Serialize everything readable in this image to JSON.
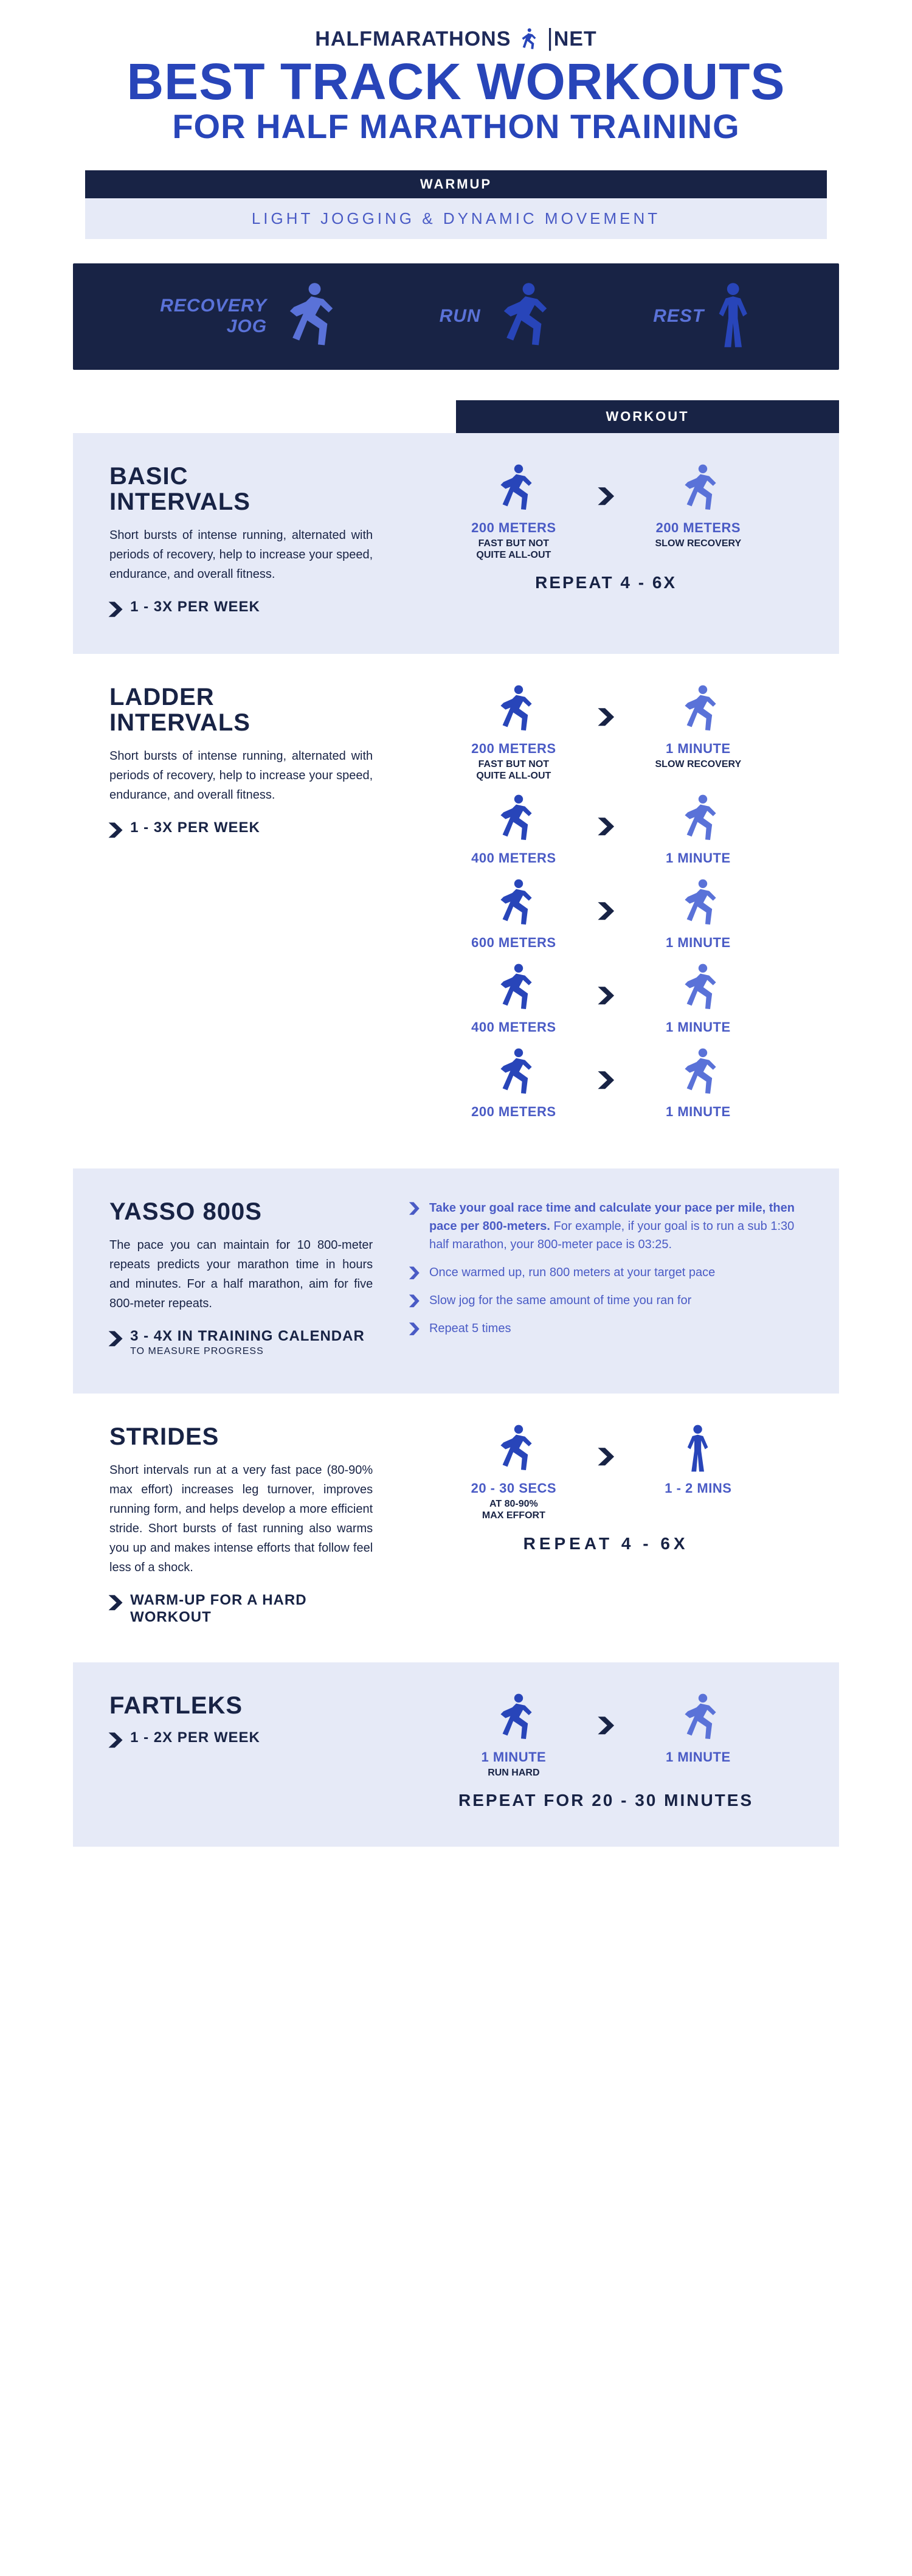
{
  "header": {
    "logo_left": "HALF",
    "logo_right": "MARATHONS",
    "logo_net": "NET",
    "title": "BEST TRACK WORKOUTS",
    "subtitle": "FOR HALF MARATHON TRAINING"
  },
  "warmup": {
    "label": "WARMUP",
    "text": "LIGHT JOGGING & DYNAMIC MOVEMENT"
  },
  "legend": {
    "items": [
      {
        "label": "RECOVERY\nJOG",
        "pose": "run",
        "color": "#5a72d8"
      },
      {
        "label": "RUN",
        "pose": "run",
        "color": "#2845b9"
      },
      {
        "label": "REST",
        "pose": "stand",
        "color": "#2845b9"
      }
    ]
  },
  "workout_tab": "WORKOUT",
  "colors": {
    "dark_navy": "#182345",
    "blue": "#2845b9",
    "periwinkle": "#5a72d8",
    "panel_bg": "#e6eaf7"
  },
  "sections": [
    {
      "id": "basic",
      "bg": "panel",
      "title": "BASIC\nINTERVALS",
      "desc": "Short bursts of intense running, alternated with periods of recovery, help to increase your speed, endurance, and overall fitness.",
      "freq": "1 - 3X PER WEEK",
      "intervals": [
        {
          "left": {
            "dist": "200 METERS",
            "note": "FAST BUT NOT\nQUITE ALL-OUT",
            "pose": "run",
            "color": "#2845b9"
          },
          "right": {
            "dist": "200 METERS",
            "note": "SLOW RECOVERY",
            "pose": "run",
            "color": "#5a72d8"
          }
        }
      ],
      "repeat": "REPEAT 4 - 6X"
    },
    {
      "id": "ladder",
      "bg": "white",
      "title": "LADDER\nINTERVALS",
      "desc": "Short bursts of intense running, alternated with periods of recovery, help to increase your speed, endurance, and overall fitness.",
      "freq": "1 - 3X PER WEEK",
      "intervals": [
        {
          "left": {
            "dist": "200 METERS",
            "note": "FAST BUT NOT\nQUITE ALL-OUT",
            "pose": "run",
            "color": "#2845b9"
          },
          "right": {
            "dist": "1 MINUTE",
            "note": "SLOW RECOVERY",
            "pose": "run",
            "color": "#5a72d8"
          }
        },
        {
          "left": {
            "dist": "400 METERS",
            "note": "",
            "pose": "run",
            "color": "#2845b9"
          },
          "right": {
            "dist": "1 MINUTE",
            "note": "",
            "pose": "run",
            "color": "#5a72d8"
          }
        },
        {
          "left": {
            "dist": "600 METERS",
            "note": "",
            "pose": "run",
            "color": "#2845b9"
          },
          "right": {
            "dist": "1 MINUTE",
            "note": "",
            "pose": "run",
            "color": "#5a72d8"
          }
        },
        {
          "left": {
            "dist": "400 METERS",
            "note": "",
            "pose": "run",
            "color": "#2845b9"
          },
          "right": {
            "dist": "1 MINUTE",
            "note": "",
            "pose": "run",
            "color": "#5a72d8"
          }
        },
        {
          "left": {
            "dist": "200 METERS",
            "note": "",
            "pose": "run",
            "color": "#2845b9"
          },
          "right": {
            "dist": "1 MINUTE",
            "note": "",
            "pose": "run",
            "color": "#5a72d8"
          }
        }
      ]
    },
    {
      "id": "yasso",
      "bg": "panel",
      "title": "YASSO 800S",
      "desc": "The pace you can maintain for 10 800-meter repeats predicts your marathon time in hours and minutes. For a half marathon, aim for five 800-meter repeats.",
      "freq": "3 - 4X IN TRAINING CALENDAR",
      "freq_sub": "TO MEASURE PROGRESS",
      "list": [
        {
          "bold": "Take your goal race time and calculate your pace per mile, then pace per 800-meters.",
          "rest": " For example, if your goal is to run a sub 1:30 half marathon, your 800-meter pace is 03:25."
        },
        {
          "bold": "",
          "rest": "Once warmed up, run 800 meters at your target pace"
        },
        {
          "bold": "",
          "rest": "Slow jog for the same amount of time you ran for"
        },
        {
          "bold": "",
          "rest": "Repeat 5 times"
        }
      ]
    },
    {
      "id": "strides",
      "bg": "white",
      "title": "STRIDES",
      "desc": "Short intervals run at a very fast pace (80-90% max effort) increases leg turnover, improves running form, and helps develop a more efficient stride. Short bursts of fast running also warms you up and makes intense efforts that follow feel less of a shock.",
      "freq": "WARM-UP FOR A HARD WORKOUT",
      "intervals": [
        {
          "left": {
            "dist": "20 - 30 SECS",
            "note": "AT 80-90%\nMAX EFFORT",
            "pose": "run",
            "color": "#2845b9"
          },
          "right": {
            "dist": "1 - 2 MINS",
            "note": "",
            "pose": "stand",
            "color": "#2845b9"
          }
        }
      ],
      "repeat": "REPEAT 4 - 6X"
    },
    {
      "id": "fartleks",
      "bg": "panel",
      "title": "FARTLEKS",
      "freq": "1 - 2X PER WEEK",
      "intervals": [
        {
          "left": {
            "dist": "1 MINUTE",
            "note": "RUN HARD",
            "pose": "run",
            "color": "#2845b9"
          },
          "right": {
            "dist": "1 MINUTE",
            "note": "",
            "pose": "run",
            "color": "#5a72d8"
          }
        }
      ],
      "repeat": "REPEAT FOR 20 - 30 MINUTES"
    }
  ]
}
